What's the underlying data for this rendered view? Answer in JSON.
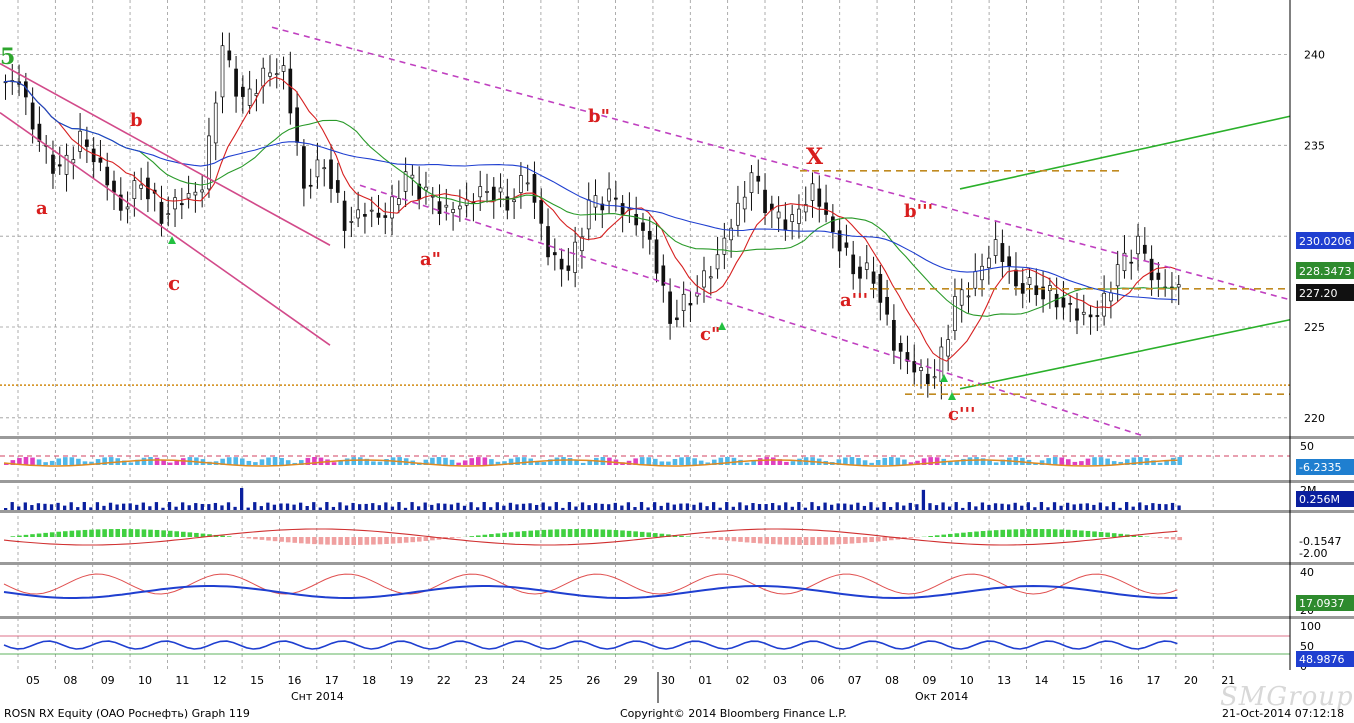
{
  "footer": {
    "left": "ROSN RX Equity (OAO Роснефть) Graph 119",
    "center": "Copyright© 2014 Bloomberg Finance L.P.",
    "right": "21-Oct-2014 07:12:18"
  },
  "watermark": "SMGroup",
  "chart_data": [
    {
      "type": "candlestick",
      "title": "",
      "ylim": [
        219,
        243
      ],
      "yticks": [
        220,
        225,
        230,
        235,
        240
      ],
      "x_tick_labels": [
        "05",
        "08",
        "09",
        "10",
        "11",
        "12",
        "15",
        "16",
        "17",
        "18",
        "19",
        "22",
        "23",
        "24",
        "25",
        "26",
        "29",
        "30",
        "01",
        "02",
        "03",
        "06",
        "07",
        "08",
        "09",
        "10",
        "13",
        "14",
        "15",
        "16",
        "17",
        "20",
        "21"
      ],
      "month_labels": [
        {
          "label": "Снт 2014",
          "after": "16"
        },
        {
          "label": "Окт 2014",
          "after": "09"
        }
      ],
      "close_series": [
        238.5,
        235.0,
        233.4,
        235.3,
        233.8,
        231.5,
        233.2,
        231.2,
        232.1,
        232.6,
        240.2,
        237.2,
        238.8,
        239.2,
        232.8,
        234.2,
        230.8,
        231.4,
        231.0,
        233.2,
        232.2,
        231.3,
        231.9,
        232.7,
        231.9,
        233.4,
        229.1,
        228.0,
        231.6,
        232.1,
        231.2,
        229.8,
        225.5,
        226.7,
        228.2,
        230.6,
        233.3,
        231.0,
        230.7,
        232.6,
        230.3,
        228.3,
        227.9,
        224.1,
        222.6,
        222.0,
        226.2,
        227.6,
        229.6,
        227.4,
        227.2,
        226.6,
        225.7,
        225.6,
        228.1,
        229.5,
        227.2,
        227.2
      ],
      "value_labels": [
        {
          "value": "230.0206",
          "color": "#1f3fd0"
        },
        {
          "value": "228.3473",
          "color": "#2e8b2e"
        },
        {
          "value": "227.20",
          "color": "#111111"
        }
      ],
      "wave_labels": [
        {
          "text": "5",
          "color": "#2da52d"
        },
        {
          "text": "a",
          "color": "#d81e1e"
        },
        {
          "text": "b",
          "color": "#d81e1e"
        },
        {
          "text": "c",
          "color": "#d81e1e"
        },
        {
          "text": "b\"",
          "color": "#d81e1e"
        },
        {
          "text": "a\"",
          "color": "#d81e1e"
        },
        {
          "text": "X",
          "color": "#d81e1e"
        },
        {
          "text": "b'''",
          "color": "#d81e1e"
        },
        {
          "text": "a'''",
          "color": "#d81e1e"
        },
        {
          "text": "c\"",
          "color": "#d81e1e"
        },
        {
          "text": "c'''",
          "color": "#d81e1e"
        }
      ]
    },
    {
      "type": "histogram",
      "yticks": [
        "50"
      ],
      "value_labels": [
        {
          "value": "-6.2335",
          "color": "#1f7fd0"
        }
      ]
    },
    {
      "type": "bar",
      "series": [
        {
          "name": "volume"
        }
      ],
      "yticks": [
        "2M"
      ],
      "value_labels": [
        {
          "value": "0.256M",
          "color": "#0a1f9e"
        }
      ]
    },
    {
      "type": "histogram",
      "value_labels": [
        {
          "value": "-0.1547",
          "color": "#ffffff"
        },
        {
          "value": "-2.00",
          "color": "#ffffff"
        }
      ]
    },
    {
      "type": "area",
      "yticks": [
        "40",
        "20"
      ],
      "value_labels": [
        {
          "value": "17.0937",
          "color": "#2e8b2e"
        }
      ]
    },
    {
      "type": "line",
      "yticks": [
        "100",
        "50",
        "0"
      ],
      "value_labels": [
        {
          "value": "48.9876",
          "color": "#1f3fd0"
        }
      ]
    }
  ]
}
